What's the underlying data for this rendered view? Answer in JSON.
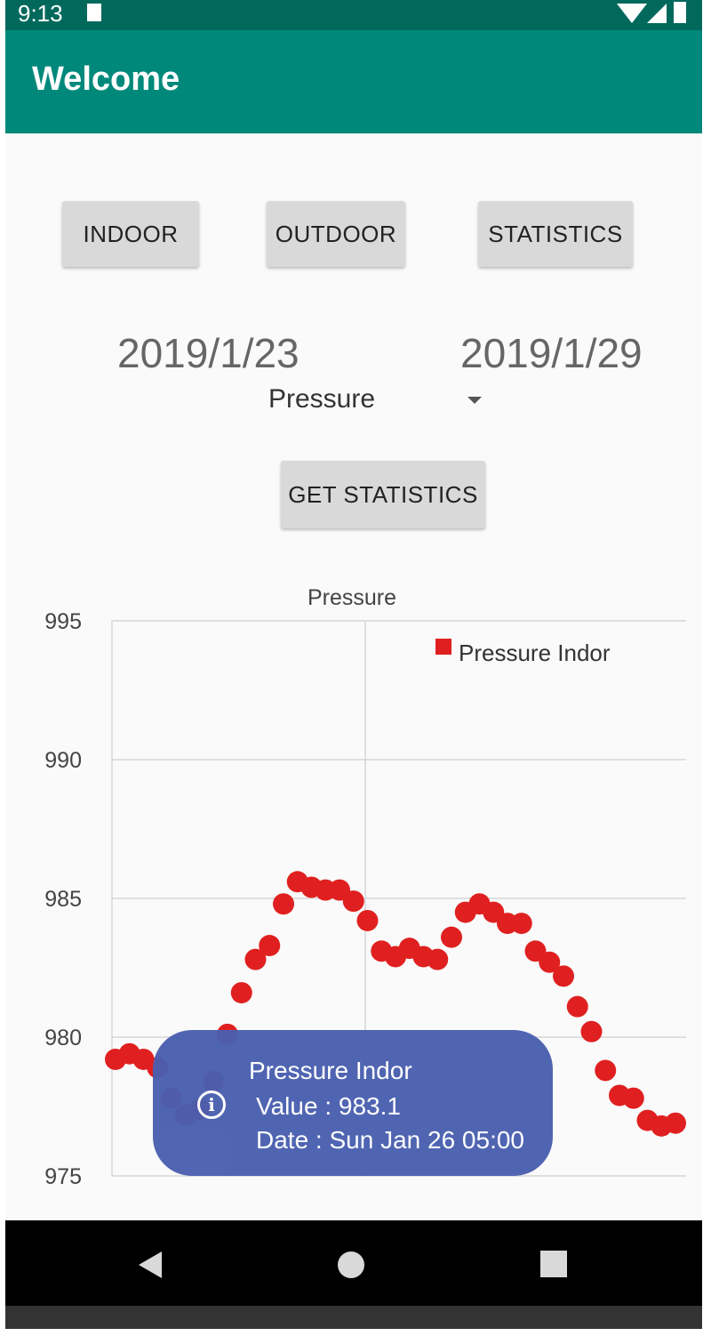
{
  "status_bar": {
    "time": "9:13"
  },
  "app_bar": {
    "title": "Welcome"
  },
  "buttons": {
    "indoor": "INDOOR",
    "outdoor": "OUTDOOR",
    "statistics": "STATISTICS",
    "get_statistics": "GET STATISTICS"
  },
  "dates": {
    "start": "2019/1/23",
    "end": "2019/1/29"
  },
  "spinner": {
    "selected": "Pressure"
  },
  "colors": {
    "app_bar": "#00897b",
    "status_bar": "#00695c",
    "series": "#e02020",
    "tooltip": "#4a5fb0"
  },
  "chart_data": {
    "type": "scatter",
    "title": "Pressure",
    "xlabel": "",
    "ylabel": "",
    "ylim": [
      975,
      995
    ],
    "yticks": [
      "975",
      "980",
      "985",
      "990",
      "995"
    ],
    "legend_position": "top-right",
    "series": [
      {
        "name": "Pressure Indor",
        "color": "#e02020",
        "values": [
          979.2,
          979.4,
          979.2,
          978.9,
          977.8,
          977.2,
          977.4,
          978.4,
          980.1,
          981.6,
          982.8,
          983.3,
          984.8,
          985.6,
          985.4,
          985.3,
          985.3,
          984.9,
          984.2,
          983.1,
          982.9,
          983.2,
          982.9,
          982.8,
          983.6,
          984.5,
          984.8,
          984.5,
          984.1,
          984.1,
          983.1,
          982.7,
          982.2,
          981.1,
          980.2,
          978.8,
          977.9,
          977.8,
          977.0,
          976.8,
          976.9
        ]
      }
    ]
  },
  "tooltip": {
    "series": "Pressure Indor",
    "value_line": "Value : 983.1",
    "date_line": "Date : Sun Jan 26 05:00",
    "icon": "info-icon"
  }
}
